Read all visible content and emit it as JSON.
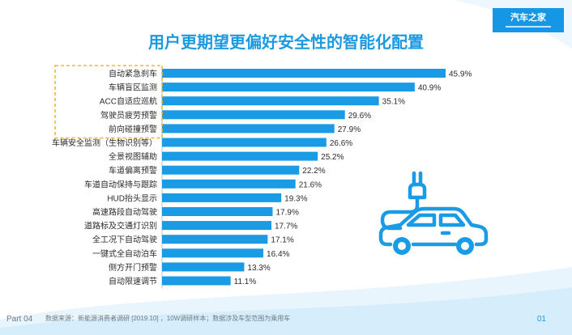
{
  "logo": {
    "text": "汽车之家"
  },
  "chart_data": {
    "type": "bar",
    "orientation": "horizontal",
    "title": "用户更期望更偏好安全性的智能化配置",
    "categories": [
      "自动紧急刹车",
      "车辆盲区监测",
      "ACC自适应巡航",
      "驾驶员疲劳预警",
      "前向碰撞预警",
      "车辆安全监测（生物识别等）",
      "全景视图辅助",
      "车道偏离预警",
      "车道自动保持与跟踪",
      "HUD抬头显示",
      "高速路段自动驾驶",
      "道路标及交通灯识别",
      "全工况下自动驾驶",
      "一键式全自动泊车",
      "侧方开门预警",
      "自动限速调节"
    ],
    "values": [
      45.9,
      40.9,
      35.1,
      29.6,
      27.9,
      26.6,
      25.2,
      22.2,
      21.6,
      19.3,
      17.9,
      17.7,
      17.1,
      16.4,
      13.3,
      11.1
    ],
    "value_labels": [
      "45.9%",
      "40.9%",
      "35.1%",
      "29.6%",
      "27.9%",
      "26.6%",
      "25.2%",
      "22.2%",
      "21.6%",
      "19.3%",
      "17.9%",
      "17.7%",
      "17.1%",
      "16.4%",
      "13.3%",
      "11.1%"
    ],
    "xlim": [
      0,
      45.9
    ],
    "grid": false,
    "legend": "none",
    "highlighted_categories": 5,
    "bar_color": "#1a9be6",
    "highlight_box_color": "#f5b52e"
  },
  "footer": {
    "part": "Part 04",
    "source": "数据来源：新能源消费者调研 [2019.10] ，10W调研样本；数据涉及车型范围为乘用车",
    "page": "01"
  },
  "icon": {
    "name": "electric-car-plug-icon",
    "color": "#1a9be6"
  }
}
